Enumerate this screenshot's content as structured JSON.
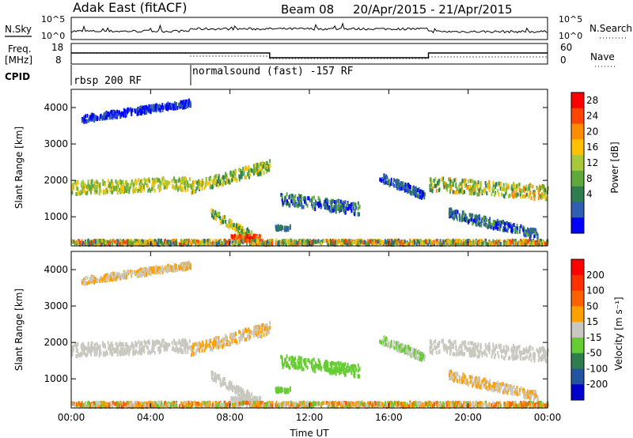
{
  "header": {
    "radar": "Adak East (fitACF)",
    "beam": "Beam 08",
    "dates": "20/Apr/2015 - 21/Apr/2015"
  },
  "top_panels": {
    "nsky_label": "N.Sky",
    "nsky_ticks": [
      "10^5",
      "10^0"
    ],
    "nsearch_label": "N.Search",
    "nsearch_ticks": [
      "10^5",
      "10^0"
    ],
    "freq_label": "Freq.",
    "freq_unit": "[MHz]",
    "freq_ticks": [
      "18",
      "8"
    ],
    "nave_label": "Nave",
    "nave_ticks": [
      "60",
      "0"
    ],
    "cpid_label": "CPID",
    "cpid_segments": [
      {
        "label": "rbsp 200 RF",
        "start_hour": 0,
        "end_hour": 6
      },
      {
        "label": "normalsound (fast) -157 RF",
        "start_hour": 6,
        "end_hour": 24
      }
    ],
    "freq_levels": [
      {
        "start_hour": 0,
        "end_hour": 10,
        "mhz": 13.5
      },
      {
        "start_hour": 10,
        "end_hour": 18,
        "mhz": 10.5
      },
      {
        "start_hour": 18,
        "end_hour": 24,
        "mhz": 13.5
      }
    ]
  },
  "chart_data": [
    {
      "type": "heatmap",
      "title": "",
      "ylabel": "Slant Range [km]",
      "ylim": [
        200,
        4500
      ],
      "yticks": [
        "4000",
        "3000",
        "2000",
        "1000"
      ],
      "xticks": [
        "00:00",
        "04:00",
        "08:00",
        "12:00",
        "16:00",
        "20:00",
        "00:00"
      ],
      "xlim_hours": [
        0,
        24
      ],
      "colorbar_label": "Power [dB]",
      "colorbar_ticks": [
        "28",
        "24",
        "20",
        "16",
        "12",
        "8",
        "4"
      ],
      "colors": [
        "#0000ff",
        "#2f5fb3",
        "#2e7d4f",
        "#5fa83a",
        "#a8c83a",
        "#ffc000",
        "#ff8c00",
        "#ff4500",
        "#ff0000"
      ]
    },
    {
      "type": "heatmap",
      "title": "",
      "ylabel": "Slant Range [km]",
      "ylim": [
        200,
        4500
      ],
      "yticks": [
        "4000",
        "3000",
        "2000",
        "1000"
      ],
      "xticks": [
        "00:00",
        "04:00",
        "08:00",
        "12:00",
        "16:00",
        "20:00",
        "00:00"
      ],
      "xlim_hours": [
        0,
        24
      ],
      "xlabel": "Time UT",
      "colorbar_label": "Velocity [m s⁻¹]",
      "colorbar_ticks": [
        "200",
        "100",
        "50",
        "15",
        "-15",
        "-50",
        "-100",
        "-200"
      ],
      "colors": [
        "#0000cc",
        "#2255a0",
        "#2e7d4f",
        "#66cc33",
        "#c8c8c0",
        "#ffa000",
        "#ff6000",
        "#ff3000",
        "#ff0000"
      ]
    }
  ]
}
